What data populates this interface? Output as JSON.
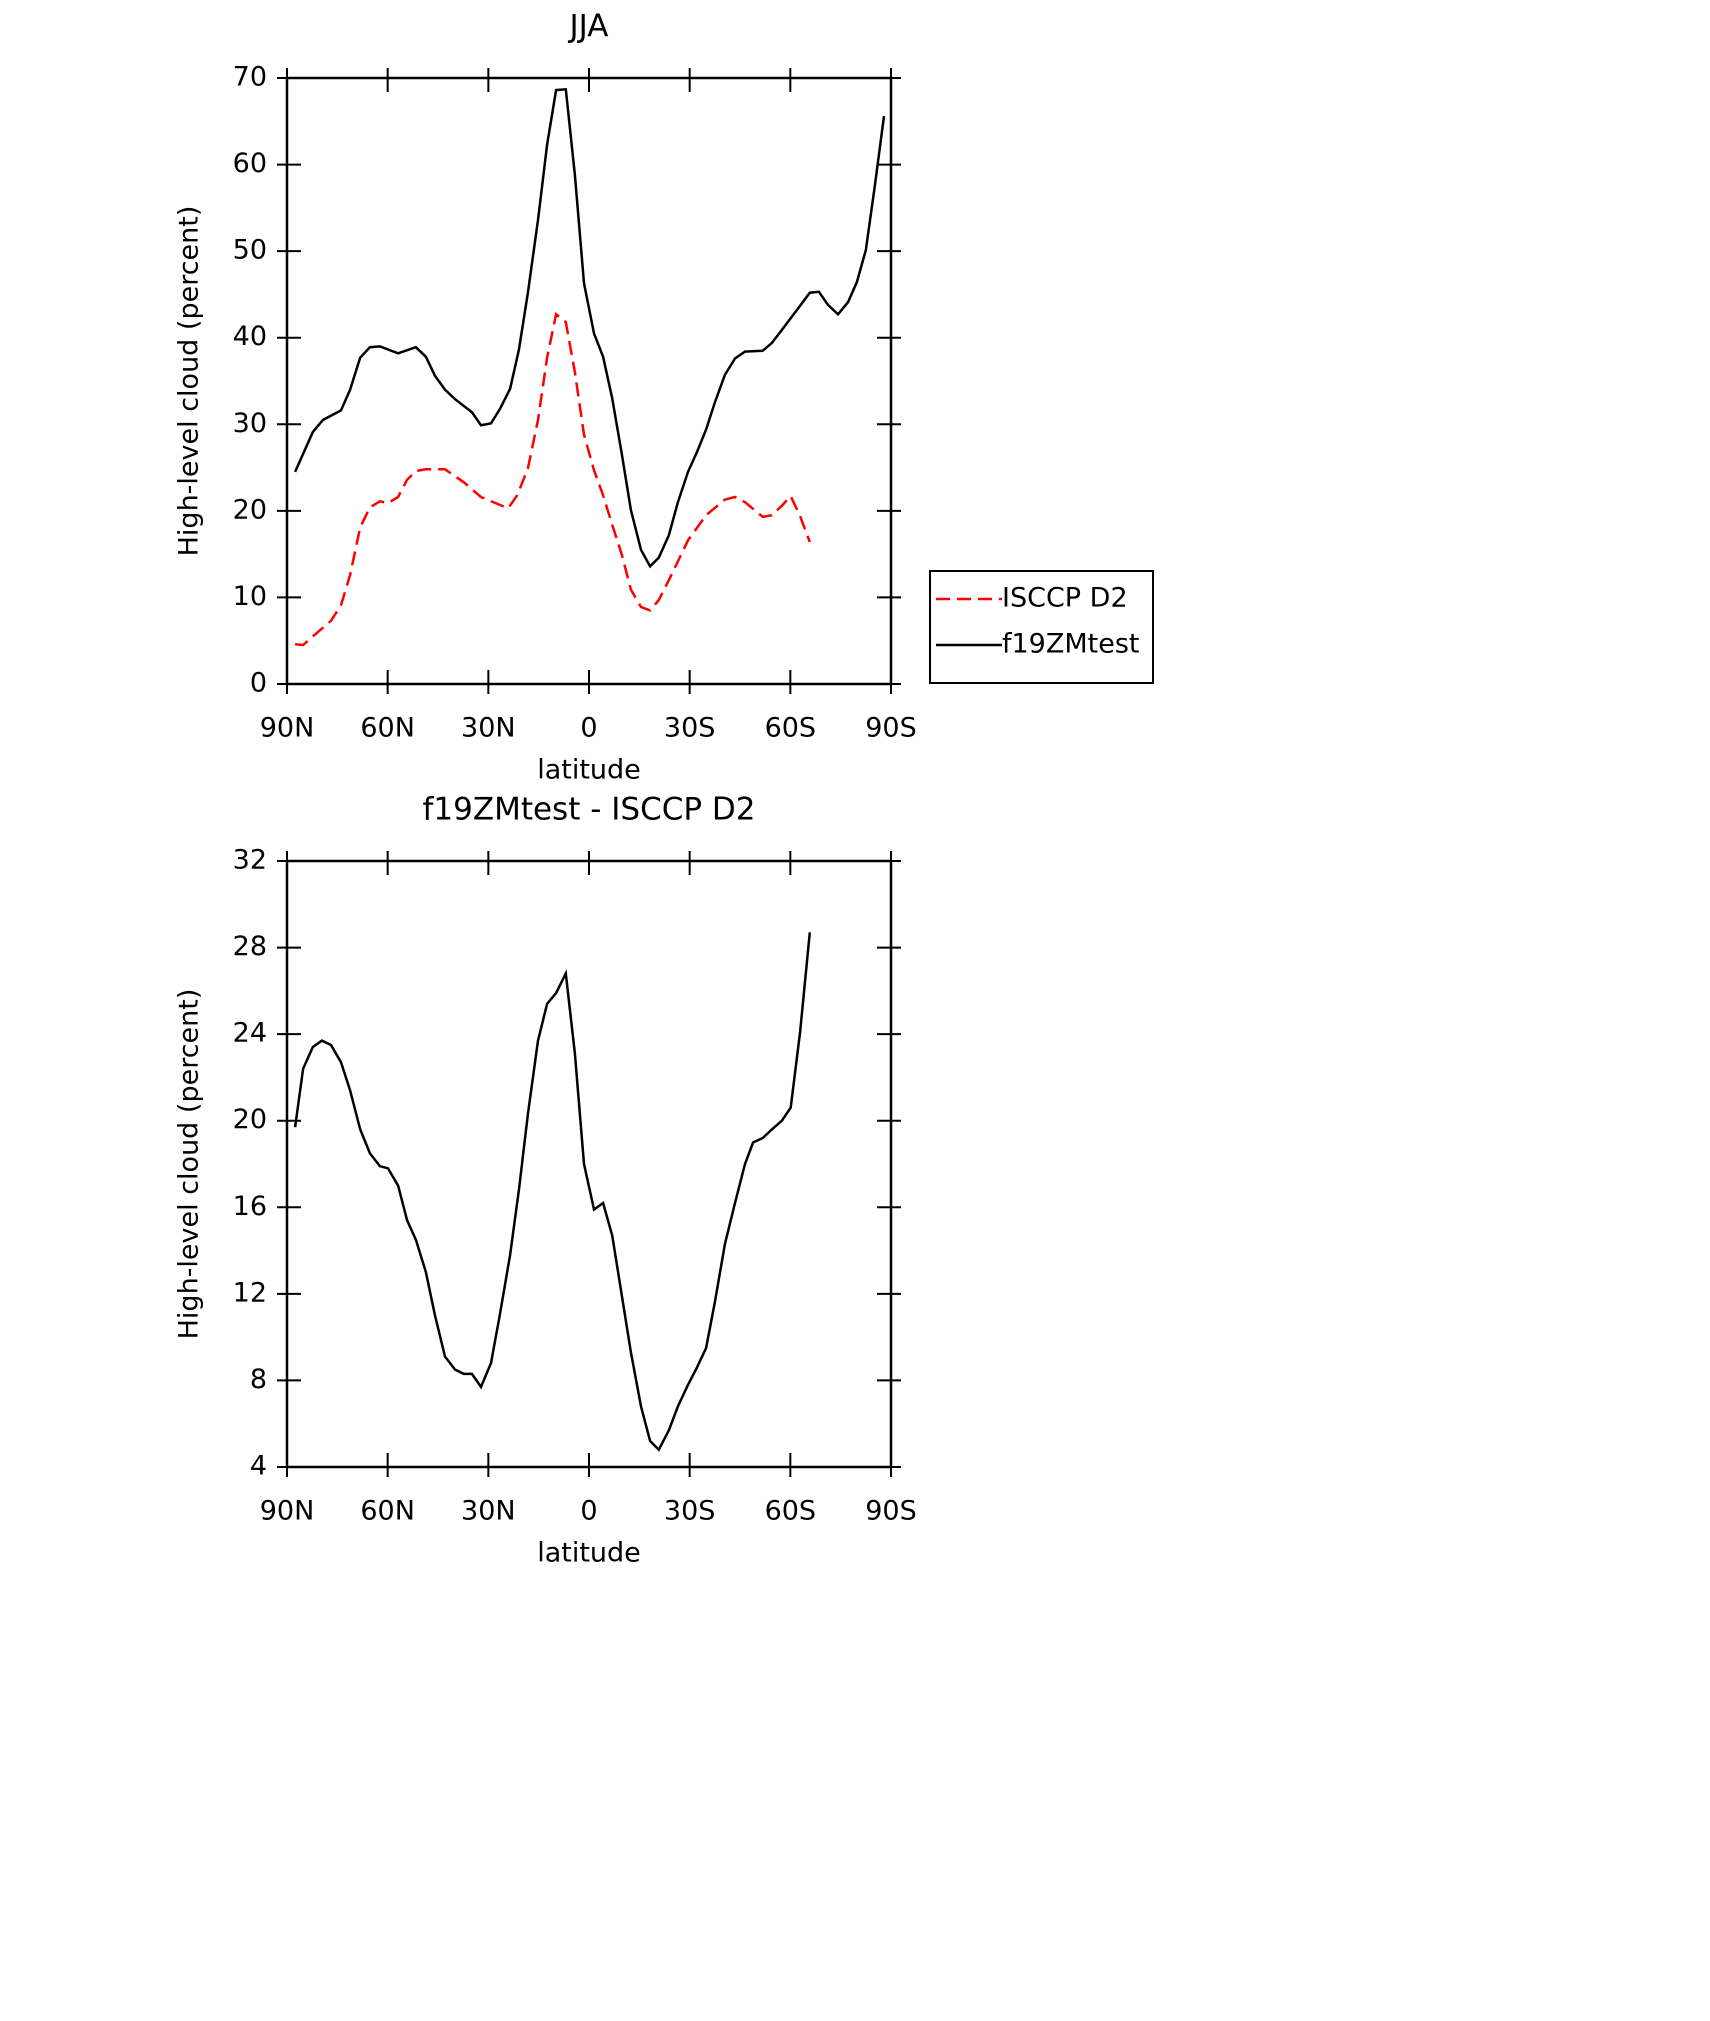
{
  "chart_data": [
    {
      "type": "line",
      "title": "JJA",
      "xlabel": "latitude",
      "ylabel": "High-level cloud (percent)",
      "xlim": [
        90,
        -90
      ],
      "ylim": [
        0,
        70
      ],
      "xticks": [
        {
          "value": 90,
          "label": "90N"
        },
        {
          "value": 60,
          "label": "60N"
        },
        {
          "value": 30,
          "label": "30N"
        },
        0,
        {
          "value": -30,
          "label": "30S"
        },
        {
          "value": -60,
          "label": "60S"
        },
        {
          "value": -90,
          "label": "90S"
        }
      ],
      "yticks": [
        0,
        10,
        20,
        30,
        40,
        50,
        60,
        70
      ],
      "legend": "right",
      "series": [
        {
          "name": "ISCCP D2",
          "color": "#ff0000",
          "style": "dashed",
          "x": [
            87.6,
            85.2,
            82.3,
            76.9,
            73.9,
            71.2,
            68.2,
            65.3,
            62.3,
            59.9,
            56.9,
            54.2,
            51.6,
            48.6,
            42.9,
            37.3,
            32.2,
            24.1,
            21.4,
            18.2,
            15.2,
            12.5,
            9.8,
            6.9,
            4.2,
            1.5,
            -1.5,
            -4.2,
            -6.9,
            -9.8,
            -12.5,
            -15.5,
            -18.2,
            -20.8,
            -23.8,
            -29.5,
            -34.9,
            -40.5,
            -43.5,
            -46.5,
            -51.8,
            -54.5,
            -57.5,
            -60.1,
            -62.9,
            -65.8
          ],
          "values": [
            4.6,
            4.5,
            5.5,
            7.3,
            9.1,
            12.6,
            18.1,
            20.4,
            21.1,
            20.9,
            21.6,
            23.6,
            24.6,
            24.8,
            24.8,
            23.3,
            21.6,
            20.3,
            21.8,
            24.9,
            30.5,
            37.7,
            42.7,
            41.8,
            36.0,
            28.8,
            24.7,
            21.8,
            18.4,
            14.9,
            10.9,
            8.9,
            8.5,
            9.7,
            12.0,
            16.6,
            19.5,
            21.3,
            21.6,
            21.0,
            19.3,
            19.5,
            20.6,
            21.7,
            19.4,
            16.4
          ]
        },
        {
          "name": "f19ZMtest",
          "color": "#000000",
          "style": "solid",
          "x": [
            87.6,
            82.3,
            79.3,
            73.9,
            71.2,
            68.2,
            65.3,
            62.3,
            56.9,
            51.6,
            48.6,
            45.9,
            42.9,
            39.9,
            34.9,
            32.2,
            29.2,
            26.5,
            23.5,
            20.9,
            18.2,
            15.2,
            12.5,
            9.8,
            6.9,
            4.2,
            1.5,
            -1.5,
            -4.2,
            -6.9,
            -9.8,
            -12.5,
            -15.5,
            -18.2,
            -20.8,
            -23.8,
            -26.5,
            -29.5,
            -32.2,
            -34.9,
            -37.5,
            -40.5,
            -43.5,
            -46.5,
            -51.8,
            -54.5,
            -57.5,
            -62.9,
            -65.8,
            -68.5,
            -71.2,
            -74.2,
            -77.2,
            -79.8,
            -82.5,
            -85.2,
            -87.9
          ],
          "values": [
            24.5,
            29.1,
            30.5,
            31.6,
            34.0,
            37.7,
            38.9,
            39.0,
            38.2,
            38.9,
            37.8,
            35.6,
            34.0,
            32.9,
            31.4,
            29.9,
            30.1,
            31.8,
            34.1,
            38.6,
            45.2,
            53.6,
            62.3,
            68.6,
            68.7,
            58.8,
            46.3,
            40.5,
            37.8,
            33.0,
            26.5,
            20.1,
            15.5,
            13.6,
            14.6,
            17.2,
            21.0,
            24.5,
            26.8,
            29.4,
            32.5,
            35.7,
            37.6,
            38.4,
            38.5,
            39.4,
            40.9,
            43.7,
            45.2,
            45.3,
            43.8,
            42.7,
            44.1,
            46.4,
            50.1,
            57.6,
            65.6
          ]
        }
      ]
    },
    {
      "type": "line",
      "title": "f19ZMtest - ISCCP D2",
      "xlabel": "latitude",
      "ylabel": "High-level cloud (percent)",
      "xlim": [
        90,
        -90
      ],
      "ylim": [
        4,
        32
      ],
      "xticks": [
        {
          "value": 90,
          "label": "90N"
        },
        {
          "value": 60,
          "label": "60N"
        },
        {
          "value": 30,
          "label": "30N"
        },
        0,
        {
          "value": -30,
          "label": "30S"
        },
        {
          "value": -60,
          "label": "60S"
        },
        {
          "value": -90,
          "label": "90S"
        }
      ],
      "yticks": [
        4,
        8,
        12,
        16,
        20,
        24,
        28,
        32
      ],
      "series": [
        {
          "color": "#000000",
          "style": "solid",
          "x": [
            87.6,
            85.2,
            82.3,
            79.6,
            76.9,
            73.9,
            71.2,
            68.2,
            65.3,
            62.3,
            59.9,
            56.9,
            54.2,
            51.6,
            48.6,
            45.9,
            42.9,
            39.9,
            37.3,
            34.9,
            32.2,
            29.2,
            26.5,
            23.5,
            20.9,
            18.2,
            15.2,
            12.5,
            9.8,
            6.9,
            4.2,
            1.5,
            -1.5,
            -4.2,
            -6.9,
            -9.8,
            -12.5,
            -15.5,
            -18.2,
            -20.8,
            -23.8,
            -26.5,
            -29.5,
            -32.2,
            -34.9,
            -37.5,
            -40.5,
            -43.5,
            -46.5,
            -48.9,
            -51.8,
            -54.5,
            -57.5,
            -60.1,
            -62.9,
            -65.8
          ],
          "values": [
            19.7,
            22.4,
            23.4,
            23.7,
            23.5,
            22.7,
            21.4,
            19.6,
            18.5,
            17.9,
            17.8,
            17.0,
            15.4,
            14.5,
            13.0,
            11.0,
            9.1,
            8.5,
            8.3,
            8.3,
            7.7,
            8.8,
            11.1,
            13.8,
            16.8,
            20.3,
            23.7,
            25.4,
            25.9,
            26.8,
            23.1,
            18.0,
            15.9,
            16.2,
            14.7,
            11.9,
            9.3,
            6.8,
            5.2,
            4.8,
            5.7,
            6.8,
            7.8,
            8.6,
            9.5,
            11.6,
            14.3,
            16.2,
            18.0,
            19.0,
            19.2,
            19.6,
            20.0,
            20.6,
            24.1,
            28.7
          ]
        }
      ]
    }
  ]
}
